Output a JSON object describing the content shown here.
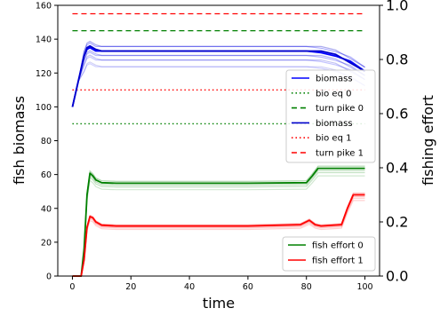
{
  "chart_data": {
    "type": "line",
    "xlabel": "time",
    "ylabel_left": "fish biomass",
    "ylabel_right": "fishing effort",
    "xlim": [
      -5,
      105
    ],
    "ylim_left": [
      0,
      160
    ],
    "ylim_right": [
      0,
      1.0
    ],
    "x_ticks": [
      "0",
      "20",
      "40",
      "60",
      "80",
      "100"
    ],
    "y_ticks_left": [
      "0",
      "20",
      "40",
      "60",
      "80",
      "100",
      "120",
      "140",
      "160"
    ],
    "y_ticks_right": [
      "0.0",
      "0.2",
      "0.4",
      "0.6",
      "0.8",
      "1.0"
    ],
    "reference_lines": [
      {
        "name": "bio eq 0",
        "y": 90,
        "color": "#008000",
        "style": "dotted"
      },
      {
        "name": "turn pike 0",
        "y": 145,
        "color": "#008000",
        "style": "dashed"
      },
      {
        "name": "bio eq 1",
        "y": 110,
        "color": "#ff0000",
        "style": "dotted"
      },
      {
        "name": "turn pike 1",
        "y": 155,
        "color": "#ff0000",
        "style": "dashed"
      }
    ],
    "series": [
      {
        "name": "biomass",
        "axis": "left",
        "color": "#0000ff",
        "x": [
          0,
          2,
          4,
          5,
          6,
          8,
          10,
          15,
          20,
          40,
          60,
          80,
          85,
          90,
          95,
          100
        ],
        "y": [
          100,
          115,
          130,
          134,
          135,
          133,
          133,
          133,
          133,
          133,
          133,
          133,
          132,
          130,
          127,
          121
        ]
      },
      {
        "name": "biomass",
        "axis": "left",
        "color": "#0000cc",
        "x": [
          0,
          2,
          4,
          5,
          6,
          8,
          10,
          15,
          20,
          40,
          60,
          80,
          85,
          90,
          95,
          100
        ],
        "y": [
          100,
          115,
          130,
          135,
          136,
          134,
          133,
          133,
          133,
          133,
          133,
          133,
          133,
          131,
          126,
          121
        ]
      },
      {
        "name": "fish effort 0",
        "axis": "right",
        "color": "#008000",
        "x": [
          0,
          3,
          4,
          5,
          6,
          7,
          8,
          10,
          15,
          20,
          40,
          60,
          80,
          82,
          84,
          100
        ],
        "y": [
          0,
          0,
          0.1,
          0.3,
          0.38,
          0.37,
          0.355,
          0.345,
          0.343,
          0.343,
          0.343,
          0.343,
          0.345,
          0.37,
          0.398,
          0.398
        ]
      },
      {
        "name": "fish effort 1",
        "axis": "right",
        "color": "#ff0000",
        "x": [
          0,
          3,
          4,
          5,
          6,
          7,
          8,
          10,
          15,
          20,
          40,
          60,
          78,
          81,
          83,
          85,
          92,
          94,
          96,
          100
        ],
        "y": [
          0,
          0,
          0.06,
          0.18,
          0.22,
          0.215,
          0.2,
          0.188,
          0.185,
          0.185,
          0.185,
          0.185,
          0.19,
          0.206,
          0.19,
          0.185,
          0.19,
          0.25,
          0.3,
          0.3
        ]
      }
    ],
    "legend_upper": {
      "position": "center-right",
      "entries": [
        {
          "label": "biomass",
          "color": "#0000ff",
          "style": "solid"
        },
        {
          "label": "bio eq 0",
          "color": "#008000",
          "style": "dotted"
        },
        {
          "label": "turn pike 0",
          "color": "#008000",
          "style": "dashed"
        },
        {
          "label": "biomass",
          "color": "#0000cc",
          "style": "solid"
        },
        {
          "label": "bio eq 1",
          "color": "#ff0000",
          "style": "dotted"
        },
        {
          "label": "turn pike 1",
          "color": "#ff0000",
          "style": "dashed"
        }
      ]
    },
    "legend_lower": {
      "position": "lower-right",
      "entries": [
        {
          "label": "fish effort 0",
          "color": "#008000",
          "style": "solid"
        },
        {
          "label": "fish effort 1",
          "color": "#ff0000",
          "style": "solid"
        }
      ]
    },
    "grid": false
  }
}
